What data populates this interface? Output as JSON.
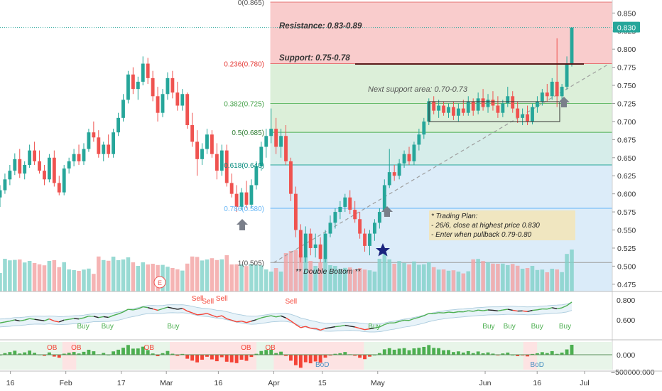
{
  "colors": {
    "up": "#26a69a",
    "down": "#ef5350",
    "resistance_zone": "#f8c7c7",
    "fib_green": "#d6ecd2",
    "fib_teal": "#cfeae6",
    "fib_blue": "#d6e9f8",
    "fib_gray": "#e3e3e3",
    "price_badge": "#26a69a",
    "note_bg": "#f0e6c0",
    "trend_line": "#9e9e9e",
    "signal_green": "#4caf50",
    "signal_red": "#f44336",
    "signal_black": "#222222",
    "arrow": "#7a7f8a",
    "star": "#1a237e"
  },
  "main_axis": {
    "ticks": [
      "0.850",
      "0.825",
      "0.800",
      "0.775",
      "0.750",
      "0.725",
      "0.700",
      "0.675",
      "0.650",
      "0.625",
      "0.600",
      "0.575",
      "0.550",
      "0.525",
      "0.500",
      "0.475"
    ],
    "current_price": "0.830"
  },
  "time_axis": {
    "ticks": [
      {
        "label": "16",
        "date": "2020-01-16"
      },
      {
        "label": "Feb",
        "date": "2020-02-01"
      },
      {
        "label": "17",
        "date": "2020-02-17"
      },
      {
        "label": "Mar",
        "date": "2020-03-01"
      },
      {
        "label": "16",
        "date": "2020-03-16"
      },
      {
        "label": "Apr",
        "date": "2020-04-01"
      },
      {
        "label": "15",
        "date": "2020-04-15"
      },
      {
        "label": "May",
        "date": "2020-05-01"
      },
      {
        "label": "Jun",
        "date": "2020-06-01"
      },
      {
        "label": "16",
        "date": "2020-06-16"
      },
      {
        "label": "Jul",
        "date": "2020-07-01"
      }
    ]
  },
  "fib_labels": [
    {
      "text": "0(0.865)",
      "price": 0.865
    },
    {
      "text": "0.236(0.780)",
      "price": 0.78
    },
    {
      "text": "0.382(0.725)",
      "price": 0.725
    },
    {
      "text": "0.5(0.685)",
      "price": 0.685
    },
    {
      "text": "0.618(0.640)",
      "price": 0.64
    },
    {
      "text": "0.786(0.580)",
      "price": 0.58
    },
    {
      "text": "1(0.505)",
      "price": 0.505
    }
  ],
  "annotations": {
    "resistance": "Resistance: 0.83-0.89",
    "support": "Support: 0.75-0.78",
    "next_support": "Next support area: 0.70-0.73",
    "plan_line1": "* Trading Plan:",
    "plan_line2": "- 26/6, close at highest price 0.830",
    "plan_line3": "- Enter when pullback 0.79-0.80",
    "double_bottom": "** Double Bottom **",
    "event_marker": "E"
  },
  "indicator1": {
    "ticks": [
      "0.800",
      "0.600"
    ],
    "buy_label": "Buy",
    "sell_label": "Sell",
    "buy_count": 8,
    "sell_count": 4
  },
  "indicator2": {
    "ticks": [
      "0.000",
      "−500000.000"
    ],
    "ob_label": "OB",
    "bod_label": "BoD",
    "ob_count": 5,
    "bod_count": 2
  },
  "chart_data": {
    "type": "candlestick",
    "series": [
      {
        "name": "price",
        "ohlc": [
          [
            "2020-01-13",
            0.595,
            0.612,
            0.582,
            0.605
          ],
          [
            "2020-01-14",
            0.605,
            0.628,
            0.6,
            0.62
          ],
          [
            "2020-01-15",
            0.62,
            0.64,
            0.612,
            0.632
          ],
          [
            "2020-01-16",
            0.632,
            0.656,
            0.626,
            0.648
          ],
          [
            "2020-01-17",
            0.648,
            0.662,
            0.622,
            0.628
          ],
          [
            "2020-01-20",
            0.628,
            0.645,
            0.62,
            0.64
          ],
          [
            "2020-01-21",
            0.64,
            0.668,
            0.636,
            0.66
          ],
          [
            "2020-01-22",
            0.66,
            0.672,
            0.64,
            0.645
          ],
          [
            "2020-01-23",
            0.645,
            0.66,
            0.628,
            0.632
          ],
          [
            "2020-01-28",
            0.632,
            0.64,
            0.612,
            0.62
          ],
          [
            "2020-01-29",
            0.62,
            0.655,
            0.616,
            0.65
          ],
          [
            "2020-01-30",
            0.65,
            0.66,
            0.61,
            0.615
          ],
          [
            "2020-01-31",
            0.615,
            0.625,
            0.598,
            0.602
          ],
          [
            "2020-02-03",
            0.602,
            0.64,
            0.598,
            0.635
          ],
          [
            "2020-02-04",
            0.635,
            0.65,
            0.628,
            0.645
          ],
          [
            "2020-02-05",
            0.645,
            0.662,
            0.638,
            0.655
          ],
          [
            "2020-02-06",
            0.655,
            0.668,
            0.64,
            0.645
          ],
          [
            "2020-02-07",
            0.645,
            0.67,
            0.64,
            0.662
          ],
          [
            "2020-02-10",
            0.662,
            0.69,
            0.658,
            0.685
          ],
          [
            "2020-02-11",
            0.685,
            0.7,
            0.672,
            0.678
          ],
          [
            "2020-02-12",
            0.678,
            0.688,
            0.65,
            0.655
          ],
          [
            "2020-02-13",
            0.655,
            0.672,
            0.645,
            0.668
          ],
          [
            "2020-02-14",
            0.668,
            0.682,
            0.65,
            0.655
          ],
          [
            "2020-02-17",
            0.655,
            0.69,
            0.65,
            0.685
          ],
          [
            "2020-02-18",
            0.685,
            0.712,
            0.68,
            0.705
          ],
          [
            "2020-02-19",
            0.705,
            0.738,
            0.7,
            0.73
          ],
          [
            "2020-02-20",
            0.73,
            0.77,
            0.725,
            0.765
          ],
          [
            "2020-02-21",
            0.765,
            0.775,
            0.738,
            0.745
          ],
          [
            "2020-02-24",
            0.745,
            0.762,
            0.73,
            0.755
          ],
          [
            "2020-02-25",
            0.755,
            0.79,
            0.75,
            0.78
          ],
          [
            "2020-02-26",
            0.78,
            0.788,
            0.752,
            0.76
          ],
          [
            "2020-02-27",
            0.76,
            0.77,
            0.728,
            0.735
          ],
          [
            "2020-02-28",
            0.735,
            0.748,
            0.7,
            0.712
          ],
          [
            "2020-03-02",
            0.712,
            0.745,
            0.706,
            0.738
          ],
          [
            "2020-03-03",
            0.738,
            0.768,
            0.73,
            0.76
          ],
          [
            "2020-03-04",
            0.76,
            0.77,
            0.732,
            0.74
          ],
          [
            "2020-03-05",
            0.74,
            0.755,
            0.715,
            0.722
          ],
          [
            "2020-03-06",
            0.722,
            0.745,
            0.715,
            0.738
          ],
          [
            "2020-03-09",
            0.738,
            0.74,
            0.69,
            0.695
          ],
          [
            "2020-03-10",
            0.695,
            0.712,
            0.665,
            0.672
          ],
          [
            "2020-03-11",
            0.672,
            0.688,
            0.625,
            0.648
          ],
          [
            "2020-03-12",
            0.648,
            0.67,
            0.64,
            0.662
          ],
          [
            "2020-03-13",
            0.662,
            0.69,
            0.655,
            0.682
          ],
          [
            "2020-03-16",
            0.682,
            0.688,
            0.65,
            0.655
          ],
          [
            "2020-03-17",
            0.655,
            0.67,
            0.62,
            0.632
          ],
          [
            "2020-03-18",
            0.632,
            0.668,
            0.625,
            0.66
          ],
          [
            "2020-03-19",
            0.66,
            0.668,
            0.61,
            0.615
          ],
          [
            "2020-03-20",
            0.615,
            0.628,
            0.595,
            0.6
          ],
          [
            "2020-03-23",
            0.6,
            0.612,
            0.575,
            0.582
          ],
          [
            "2020-03-24",
            0.582,
            0.608,
            0.578,
            0.602
          ],
          [
            "2020-03-25",
            0.602,
            0.618,
            0.58,
            0.585
          ],
          [
            "2020-03-26",
            0.585,
            0.62,
            0.58,
            0.612
          ],
          [
            "2020-03-27",
            0.612,
            0.645,
            0.606,
            0.638
          ],
          [
            "2020-03-30",
            0.638,
            0.672,
            0.632,
            0.665
          ],
          [
            "2020-03-31",
            0.665,
            0.69,
            0.65,
            0.68
          ],
          [
            "2020-04-01",
            0.68,
            0.718,
            0.67,
            0.69
          ],
          [
            "2020-04-02",
            0.69,
            0.705,
            0.655,
            0.665
          ],
          [
            "2020-04-03",
            0.665,
            0.69,
            0.65,
            0.68
          ],
          [
            "2020-04-06",
            0.68,
            0.695,
            0.64,
            0.645
          ],
          [
            "2020-04-07",
            0.645,
            0.65,
            0.59,
            0.6
          ],
          [
            "2020-04-08",
            0.6,
            0.61,
            0.54,
            0.55
          ],
          [
            "2020-04-09",
            0.55,
            0.558,
            0.505,
            0.512
          ],
          [
            "2020-04-10",
            0.512,
            0.555,
            0.505,
            0.545
          ],
          [
            "2020-04-13",
            0.545,
            0.552,
            0.515,
            0.525
          ],
          [
            "2020-04-14",
            0.525,
            0.545,
            0.512,
            0.53
          ],
          [
            "2020-04-15",
            0.53,
            0.54,
            0.505,
            0.51
          ],
          [
            "2020-04-16",
            0.51,
            0.55,
            0.505,
            0.545
          ],
          [
            "2020-04-17",
            0.545,
            0.57,
            0.54,
            0.56
          ],
          [
            "2020-04-20",
            0.56,
            0.58,
            0.552,
            0.575
          ],
          [
            "2020-04-21",
            0.575,
            0.59,
            0.565,
            0.582
          ],
          [
            "2020-04-22",
            0.582,
            0.6,
            0.575,
            0.595
          ],
          [
            "2020-04-23",
            0.595,
            0.605,
            0.572,
            0.578
          ],
          [
            "2020-04-24",
            0.578,
            0.59,
            0.56,
            0.565
          ],
          [
            "2020-04-27",
            0.565,
            0.575,
            0.538,
            0.545
          ],
          [
            "2020-04-28",
            0.545,
            0.552,
            0.52,
            0.528
          ],
          [
            "2020-04-29",
            0.528,
            0.55,
            0.515,
            0.545
          ],
          [
            "2020-04-30",
            0.545,
            0.565,
            0.535,
            0.56
          ],
          [
            "2020-05-04",
            0.56,
            0.58,
            0.552,
            0.575
          ],
          [
            "2020-05-05",
            0.575,
            0.62,
            0.57,
            0.612
          ],
          [
            "2020-05-06",
            0.612,
            0.662,
            0.608,
            0.63
          ],
          [
            "2020-05-07",
            0.63,
            0.64,
            0.618,
            0.625
          ],
          [
            "2020-05-08",
            0.625,
            0.648,
            0.62,
            0.642
          ],
          [
            "2020-05-11",
            0.642,
            0.66,
            0.636,
            0.655
          ],
          [
            "2020-05-12",
            0.655,
            0.665,
            0.64,
            0.645
          ],
          [
            "2020-05-13",
            0.645,
            0.672,
            0.64,
            0.668
          ],
          [
            "2020-05-14",
            0.668,
            0.69,
            0.66,
            0.682
          ],
          [
            "2020-05-15",
            0.682,
            0.705,
            0.676,
            0.7
          ],
          [
            "2020-05-18",
            0.7,
            0.732,
            0.695,
            0.728
          ],
          [
            "2020-05-19",
            0.728,
            0.735,
            0.71,
            0.715
          ],
          [
            "2020-05-20",
            0.715,
            0.73,
            0.705,
            0.722
          ],
          [
            "2020-05-21",
            0.722,
            0.728,
            0.708,
            0.712
          ],
          [
            "2020-05-22",
            0.712,
            0.725,
            0.705,
            0.72
          ],
          [
            "2020-05-25",
            0.72,
            0.728,
            0.702,
            0.708
          ],
          [
            "2020-05-26",
            0.708,
            0.725,
            0.7,
            0.718
          ],
          [
            "2020-05-27",
            0.718,
            0.73,
            0.708,
            0.712
          ],
          [
            "2020-05-28",
            0.712,
            0.735,
            0.708,
            0.728
          ],
          [
            "2020-05-29",
            0.728,
            0.732,
            0.708,
            0.715
          ],
          [
            "2020-06-01",
            0.715,
            0.74,
            0.71,
            0.732
          ],
          [
            "2020-06-02",
            0.732,
            0.745,
            0.715,
            0.72
          ],
          [
            "2020-06-03",
            0.72,
            0.738,
            0.712,
            0.73
          ],
          [
            "2020-06-04",
            0.73,
            0.742,
            0.715,
            0.722
          ],
          [
            "2020-06-05",
            0.722,
            0.735,
            0.705,
            0.712
          ],
          [
            "2020-06-08",
            0.712,
            0.73,
            0.706,
            0.725
          ],
          [
            "2020-06-09",
            0.725,
            0.748,
            0.72,
            0.735
          ],
          [
            "2020-06-10",
            0.735,
            0.742,
            0.712,
            0.718
          ],
          [
            "2020-06-11",
            0.718,
            0.728,
            0.698,
            0.705
          ],
          [
            "2020-06-12",
            0.705,
            0.718,
            0.695,
            0.71
          ],
          [
            "2020-06-15",
            0.71,
            0.722,
            0.695,
            0.7
          ],
          [
            "2020-06-16",
            0.7,
            0.725,
            0.696,
            0.72
          ],
          [
            "2020-06-17",
            0.72,
            0.735,
            0.712,
            0.728
          ],
          [
            "2020-06-18",
            0.728,
            0.745,
            0.722,
            0.74
          ],
          [
            "2020-06-19",
            0.74,
            0.752,
            0.728,
            0.735
          ],
          [
            "2020-06-22",
            0.735,
            0.76,
            0.73,
            0.755
          ],
          [
            "2020-06-23",
            0.755,
            0.815,
            0.72,
            0.735
          ],
          [
            "2020-06-24",
            0.735,
            0.752,
            0.728,
            0.748
          ],
          [
            "2020-06-25",
            0.748,
            0.79,
            0.744,
            0.78
          ],
          [
            "2020-06-26",
            0.78,
            0.83,
            0.776,
            0.83
          ]
        ]
      }
    ],
    "ylim": [
      0.465,
      0.868
    ],
    "annotations": [
      "Resistance: 0.83-0.89",
      "Support: 0.75-0.78",
      "Next support area: 0.70-0.73",
      "** Double Bottom **"
    ],
    "grid": false,
    "legend": "none"
  }
}
